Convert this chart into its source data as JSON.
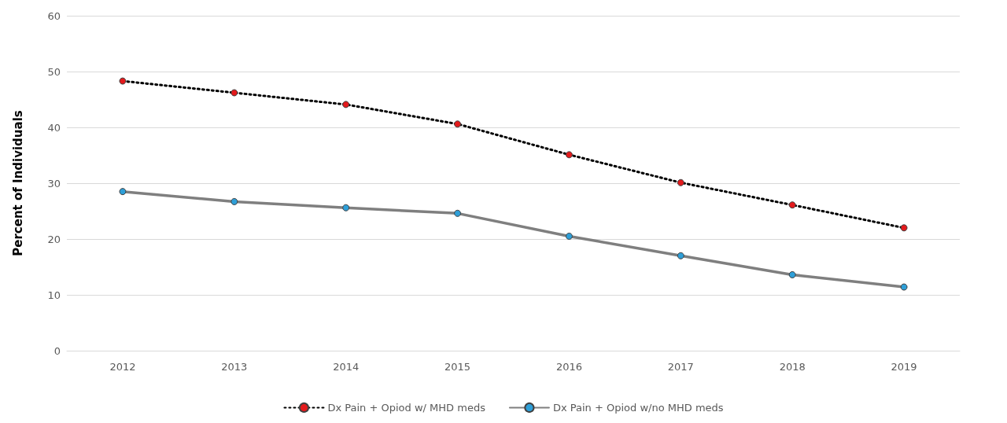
{
  "chart_data": {
    "type": "line",
    "ylabel": "Percent of Individuals",
    "categories": [
      "2012",
      "2013",
      "2014",
      "2015",
      "2016",
      "2017",
      "2018",
      "2019"
    ],
    "series": [
      {
        "name": "Dx Pain + Opiod w/ MHD meds",
        "color": "#000000",
        "line_style": "dotted",
        "values": [
          48.3,
          46.2,
          44.1,
          40.6,
          35.1,
          30.1,
          26.1,
          22.0
        ]
      },
      {
        "name": "Dx Pain + Opiod w/no MHD meds",
        "color": "#7f7f7f",
        "line_style": "solid",
        "values": [
          28.5,
          26.7,
          25.6,
          24.6,
          20.5,
          17.0,
          13.6,
          11.4
        ]
      }
    ],
    "ylim": [
      0,
      60
    ],
    "yticks": [
      0,
      10,
      20,
      30,
      40,
      50,
      60
    ],
    "grid": "y",
    "legend": "bottom",
    "marker": "circle"
  }
}
